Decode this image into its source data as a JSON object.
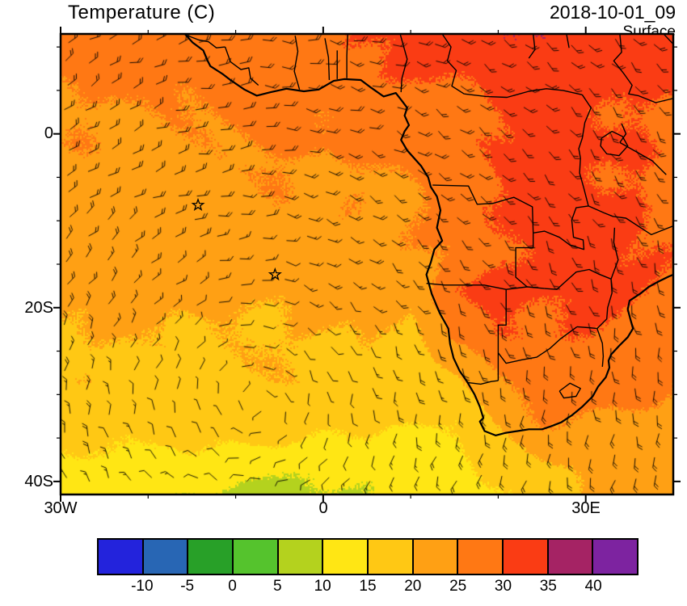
{
  "header": {
    "title": "Temperature (C)",
    "datetime": "2018-10-01_09",
    "level": "Surface"
  },
  "axes": {
    "lon_min": -30,
    "lon_max": 40,
    "lat_min": -41.5,
    "lat_max": 11.5,
    "x_ticks": [
      {
        "label": "30W",
        "lon": -30
      },
      {
        "label": "0",
        "lon": 0
      },
      {
        "label": "30E",
        "lon": 30
      }
    ],
    "y_ticks": [
      {
        "label": "0",
        "lat": 0
      },
      {
        "label": "20S",
        "lat": -20
      },
      {
        "label": "40S",
        "lat": -40
      }
    ],
    "x_minor_step_deg": 10,
    "y_minor_step_deg": 5
  },
  "colorbar": {
    "levels": [
      -10,
      -5,
      0,
      5,
      10,
      15,
      20,
      25,
      30,
      35,
      40
    ],
    "labels": [
      "-10",
      "-5",
      "0",
      "5",
      "10",
      "15",
      "20",
      "25",
      "30",
      "35",
      "40"
    ],
    "colors": [
      "#2323dc",
      "#2866b4",
      "#28a028",
      "#55c32d",
      "#b4d21e",
      "#ffe614",
      "#ffc814",
      "#ffa014",
      "#ff7814",
      "#fa3c14",
      "#a52364",
      "#7d23a0"
    ]
  },
  "chart_data": {
    "type": "heatmap",
    "title": "Temperature (C)",
    "units": "C",
    "valid_time": "2018-10-01_09",
    "level": "Surface",
    "region": {
      "lon_min": -30,
      "lon_max": 40,
      "lat_min": -41.5,
      "lat_max": 11.5
    },
    "colorbar_levels_c": [
      -10,
      -5,
      0,
      5,
      10,
      15,
      20,
      25,
      30,
      35,
      40
    ],
    "grid": {
      "lons": [
        -30,
        -25,
        -20,
        -15,
        -10,
        -5,
        0,
        5,
        10,
        15,
        20,
        25,
        30,
        35,
        40
      ],
      "lats": [
        12,
        7,
        2,
        -3,
        -8,
        -13,
        -18,
        -23,
        -28,
        -33,
        -38,
        -43
      ],
      "temperature_c": [
        [
          27,
          27,
          27,
          27,
          28,
          29,
          29,
          30,
          31,
          32,
          34,
          35,
          33,
          32,
          31
        ],
        [
          26,
          26,
          26,
          27,
          28,
          28,
          28,
          29,
          30,
          31,
          32,
          34,
          32,
          31,
          30
        ],
        [
          24.5,
          24.5,
          25,
          25,
          25.5,
          26,
          26,
          27,
          27,
          28,
          30,
          31,
          31,
          30,
          29
        ],
        [
          24,
          24,
          24,
          24,
          24,
          25,
          25,
          25,
          26,
          28,
          30,
          31,
          31,
          30,
          29
        ],
        [
          23,
          23,
          23,
          23,
          23,
          24,
          24,
          24,
          25,
          27,
          30,
          32,
          31,
          30,
          29
        ],
        [
          22,
          22,
          22,
          22,
          22,
          23,
          23,
          23,
          24,
          26,
          29,
          32,
          32,
          30,
          29
        ],
        [
          21,
          21,
          21,
          21,
          21,
          21,
          22,
          22,
          20,
          30,
          31,
          31,
          31,
          30,
          29
        ],
        [
          20,
          20,
          20,
          20,
          20,
          20,
          20,
          20,
          18,
          27,
          30,
          30,
          30,
          29,
          28
        ],
        [
          19,
          19,
          19,
          19,
          19,
          19,
          19,
          19,
          17,
          19,
          25,
          28,
          28,
          27,
          26
        ],
        [
          17,
          17,
          18,
          18,
          18,
          18,
          17,
          17,
          16,
          15,
          21,
          25,
          25,
          24,
          23
        ],
        [
          13,
          14,
          14,
          13,
          12,
          11,
          11,
          11,
          12,
          13,
          16,
          19,
          21,
          21,
          21
        ],
        [
          11,
          11,
          10,
          9,
          8,
          8,
          8,
          9,
          10,
          12,
          14,
          17,
          19,
          20,
          20
        ]
      ]
    },
    "markers": [
      {
        "type": "star",
        "lon": -14.3,
        "lat": -8.2
      },
      {
        "type": "star",
        "lon": -5.5,
        "lat": -16.2
      }
    ],
    "wind_barbs": {
      "present": true,
      "approx_pattern": "anticyclonic flow around South Atlantic subtropical high",
      "center_lon": -8,
      "center_lat": -31
    }
  }
}
